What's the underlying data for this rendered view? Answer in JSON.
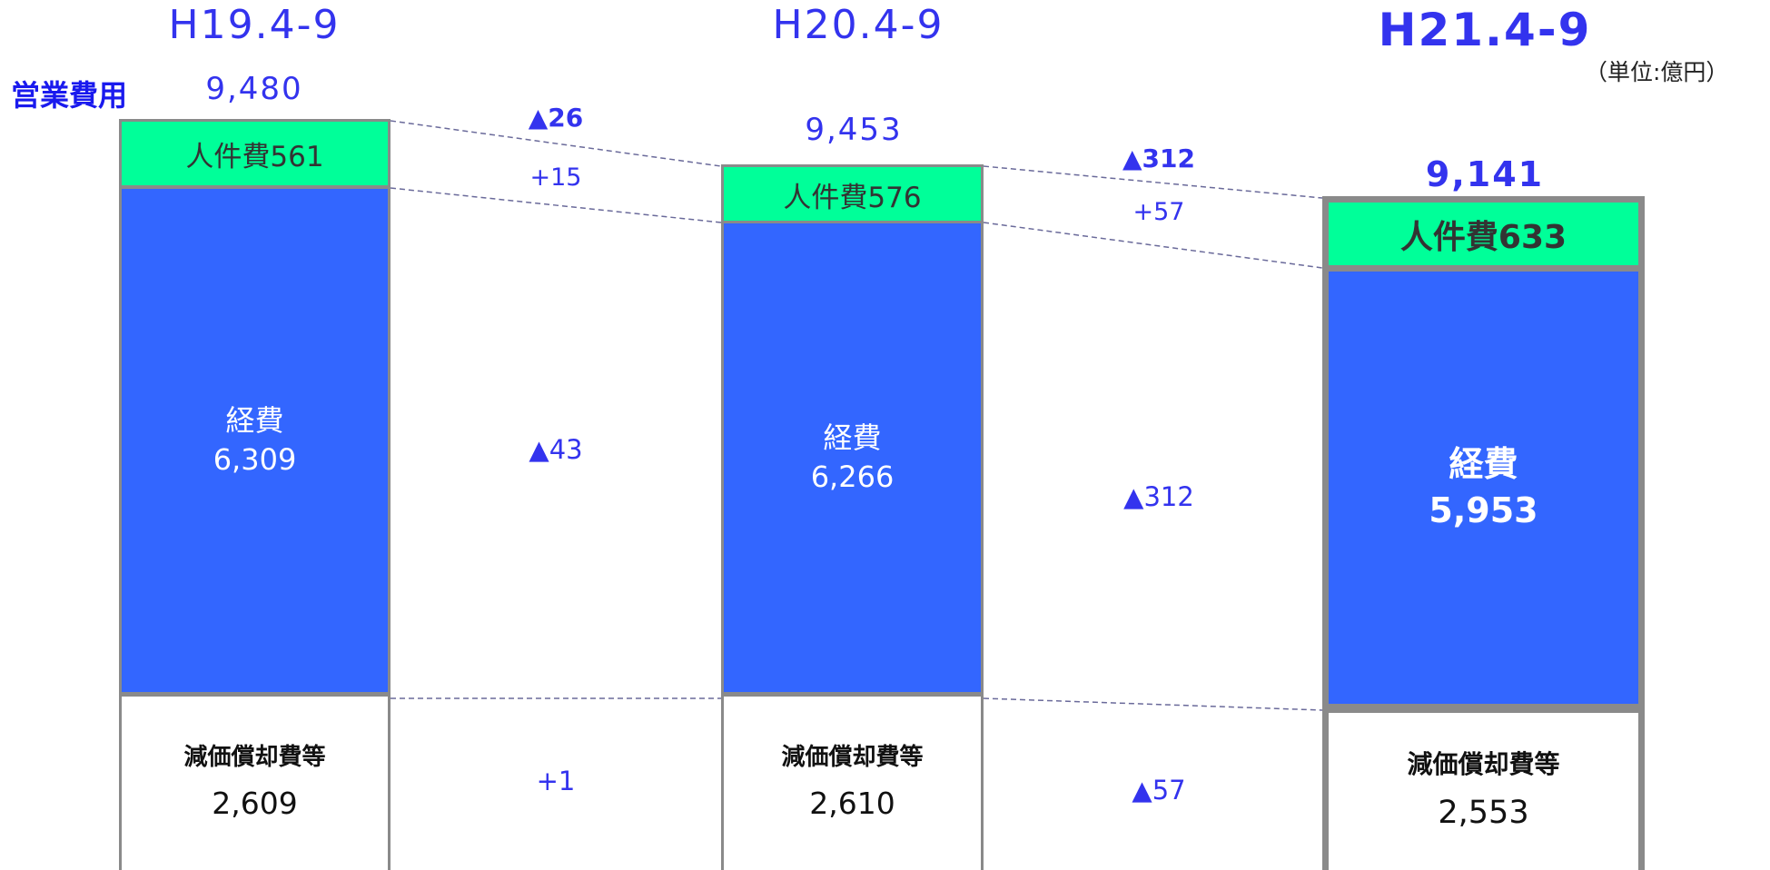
{
  "chart_data": {
    "type": "stacked-bar",
    "unit_note": "（単位:億円）",
    "side_label": "営業費用",
    "periods": [
      {
        "label": "H19.4-9",
        "total": "9,480",
        "personnel": "人件費561",
        "expense_name": "経費",
        "expense_value": "6,309",
        "depr_name": "減価償却費等",
        "depr_value": "2,609"
      },
      {
        "label": "H20.4-9",
        "total": "9,453",
        "personnel": "人件費576",
        "expense_name": "経費",
        "expense_value": "6,266",
        "depr_name": "減価償却費等",
        "depr_value": "2,610"
      },
      {
        "label": "H21.4-9",
        "total": "9,141",
        "personnel": "人件費633",
        "expense_name": "経費",
        "expense_value": "5,953",
        "depr_name": "減価償却費等",
        "depr_value": "2,553"
      }
    ],
    "changes": [
      {
        "total": "▲26",
        "personnel": "+15",
        "expense": "▲43",
        "depr": "+1"
      },
      {
        "total": "▲312",
        "personnel": "+57",
        "expense": "▲312",
        "depr": "▲57"
      }
    ],
    "values": {
      "total": [
        9480,
        9453,
        9141
      ],
      "personnel": [
        561,
        576,
        633
      ],
      "expense": [
        6309,
        6266,
        5953
      ],
      "depreciation": [
        2609,
        2610,
        2553
      ]
    },
    "colors": {
      "personnel": "#00ff99",
      "expense": "#3366ff",
      "depreciation": "#ffffff",
      "text_accent": "#3333ee",
      "border": "#8a8a8a",
      "connector": "#6a6a9a"
    }
  }
}
